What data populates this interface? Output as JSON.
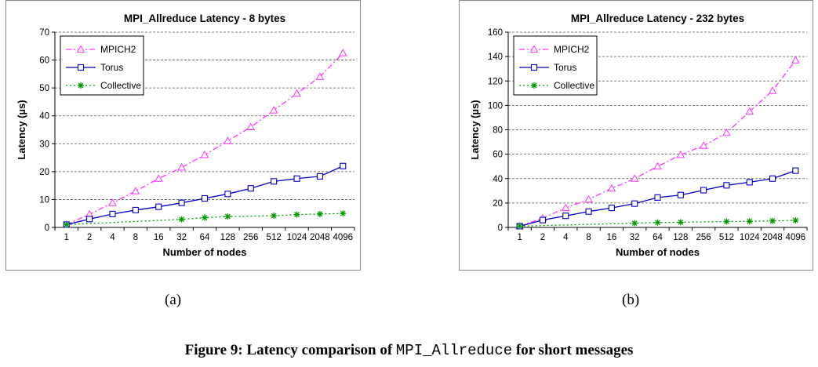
{
  "caption": {
    "prefix": "Figure 9: Latency comparison of ",
    "code": "MPI_Allreduce",
    "suffix": " for short messages"
  },
  "chart_data": [
    {
      "type": "line",
      "panel_label": "(a)",
      "title": "MPI_Allreduce Latency - 8 bytes",
      "xlabel": "Number of nodes",
      "ylabel": "Latency (µs)",
      "categories": [
        "1",
        "2",
        "4",
        "8",
        "16",
        "32",
        "64",
        "128",
        "256",
        "512",
        "1024",
        "2048",
        "4096"
      ],
      "ylim": [
        0,
        70
      ],
      "yticks": [
        0,
        10,
        20,
        30,
        40,
        50,
        60,
        70
      ],
      "grid": "horizontal dashed",
      "legend": "top-left",
      "series": [
        {
          "name": "MPICH2",
          "color": "#ff33ff",
          "marker": "triangle",
          "dash": "dash-dot",
          "values": [
            1,
            4.7,
            8.8,
            13,
            17.5,
            21.5,
            26,
            31,
            36,
            42,
            48,
            54,
            62.5
          ]
        },
        {
          "name": "Torus",
          "color": "#0000cc",
          "marker": "square",
          "dash": "solid",
          "values": [
            1,
            3,
            4.8,
            6.2,
            7.4,
            8.8,
            10.4,
            12,
            14,
            16.5,
            17.5,
            18.3,
            22
          ]
        },
        {
          "name": "Collective",
          "color": "#009900",
          "marker": "star",
          "dash": "dotted",
          "values": [
            1,
            null,
            null,
            null,
            null,
            2.9,
            3.5,
            3.9,
            null,
            4.2,
            4.6,
            4.8,
            5
          ]
        }
      ]
    },
    {
      "type": "line",
      "panel_label": "(b)",
      "title": "MPI_Allreduce Latency - 232 bytes",
      "xlabel": "Number of nodes",
      "ylabel": "Latency (µs)",
      "categories": [
        "1",
        "2",
        "4",
        "8",
        "16",
        "32",
        "64",
        "128",
        "256",
        "512",
        "1024",
        "2048",
        "4096"
      ],
      "ylim": [
        0,
        160
      ],
      "yticks": [
        0,
        20,
        40,
        60,
        80,
        100,
        120,
        140,
        160
      ],
      "grid": "horizontal dashed",
      "legend": "top-left",
      "series": [
        {
          "name": "MPICH2",
          "color": "#ff33ff",
          "marker": "triangle",
          "dash": "dash-dot",
          "values": [
            1,
            7.5,
            16,
            23,
            32,
            40,
            50,
            59.5,
            67,
            77.5,
            95,
            112,
            137
          ]
        },
        {
          "name": "Torus",
          "color": "#0000cc",
          "marker": "square",
          "dash": "solid",
          "values": [
            1,
            6,
            9.5,
            13,
            16,
            19.5,
            24.5,
            26.5,
            30.5,
            34.5,
            37,
            40,
            46.5
          ]
        },
        {
          "name": "Collective",
          "color": "#009900",
          "marker": "star",
          "dash": "dotted",
          "values": [
            1,
            null,
            null,
            null,
            null,
            3.5,
            4,
            4.2,
            null,
            4.8,
            5,
            5.3,
            5.8
          ]
        }
      ]
    }
  ]
}
